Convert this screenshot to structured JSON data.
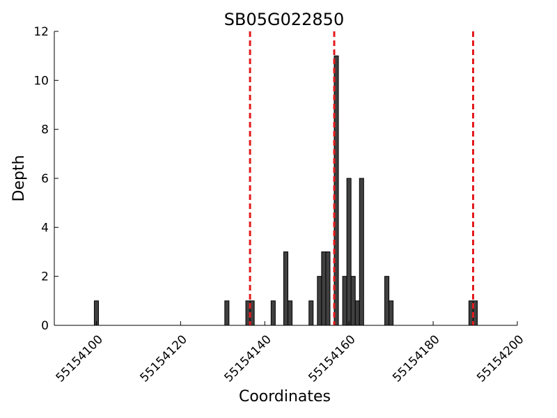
{
  "chart_data": {
    "type": "bar",
    "title": "SB05G022850",
    "xlabel": "Coordinates",
    "ylabel": "Depth",
    "xlim": [
      55154090,
      55154200
    ],
    "ylim": [
      0,
      12
    ],
    "xticks": [
      55154100,
      55154120,
      55154140,
      55154160,
      55154180,
      55154200
    ],
    "yticks": [
      0,
      2,
      4,
      6,
      8,
      10,
      12
    ],
    "grid": false,
    "bar_color": "#404040",
    "bar_width": 1,
    "x": [
      55154100,
      55154131,
      55154136,
      55154137,
      55154142,
      55154145,
      55154146,
      55154151,
      55154153,
      55154154,
      55154155,
      55154157,
      55154159,
      55154160,
      55154161,
      55154162,
      55154163,
      55154169,
      55154170,
      55154189,
      55154190
    ],
    "values": [
      1,
      1,
      1,
      1,
      1,
      3,
      1,
      1,
      2,
      3,
      3,
      11,
      2,
      6,
      2,
      1,
      6,
      2,
      1,
      1,
      1
    ],
    "vlines": [
      55154136.5,
      55154156.5,
      55154189.5
    ],
    "vline_color": "#e41a1c",
    "vline_style": "dashed"
  }
}
